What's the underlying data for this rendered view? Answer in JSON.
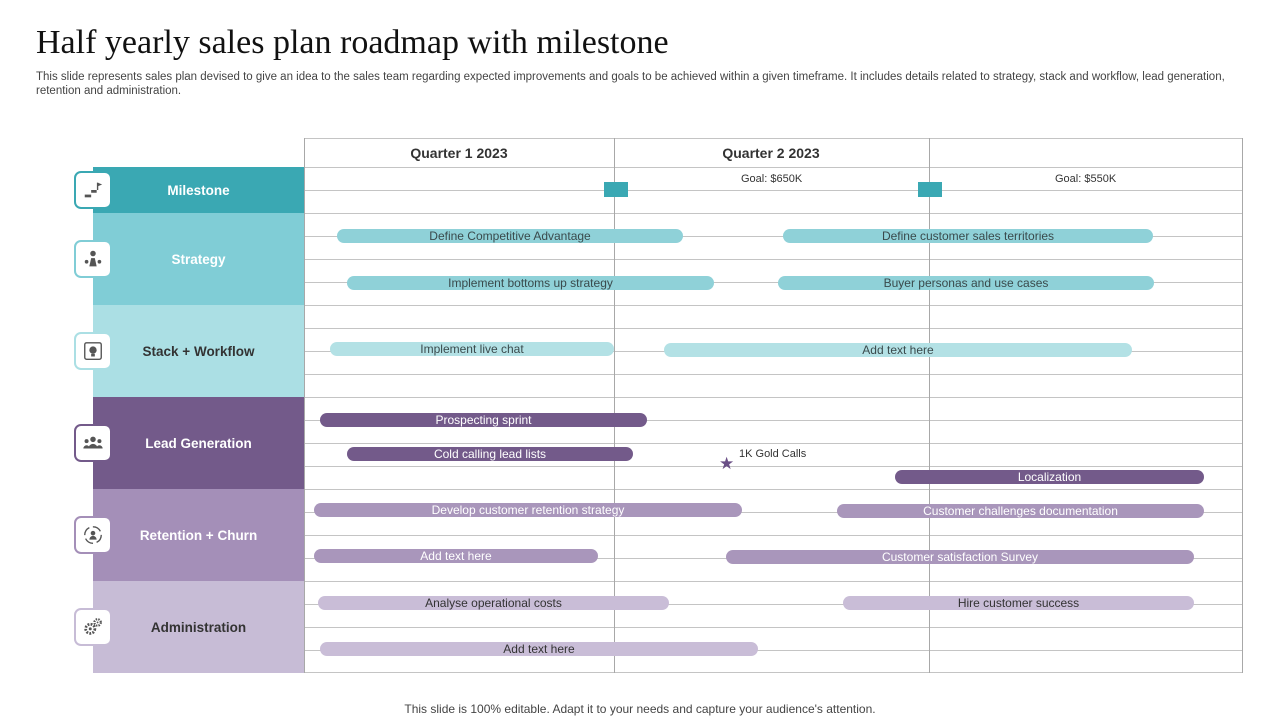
{
  "title": "Half yearly sales plan roadmap with milestone",
  "subtitle": "This slide represents sales plan devised to give an idea to the sales team regarding expected improvements and goals to be achieved within a given timeframe. It includes details related to strategy, stack and workflow, lead generation, retention and administration.",
  "footer": "This slide is 100% editable. Adapt it to your needs and capture your audience's attention.",
  "quarters": [
    "Quarter 1 2023",
    "Quarter 2 2023"
  ],
  "categories": [
    {
      "label": "Milestone",
      "icon": "flag-steps-icon",
      "color": "#3aa8b3",
      "text_color": "#ffffff"
    },
    {
      "label": "Strategy",
      "icon": "chess-strategy-icon",
      "color": "#80cdd6",
      "text_color": "#ffffff"
    },
    {
      "label": "Stack + Workflow",
      "icon": "lightbulb-icon",
      "color": "#abdfe4",
      "text_color": "#333333"
    },
    {
      "label": "Lead Generation",
      "icon": "team-icon",
      "color": "#735a8a",
      "text_color": "#ffffff"
    },
    {
      "label": "Retention + Churn",
      "icon": "retention-cycle-icon",
      "color": "#a48fb8",
      "text_color": "#ffffff"
    },
    {
      "label": "Administration",
      "icon": "gears-icon",
      "color": "#c7bcd6",
      "text_color": "#333333"
    }
  ],
  "milestones": {
    "goals": [
      "Goal: $650K",
      "Goal: $550K"
    ],
    "star_label": "1K Gold Calls"
  },
  "tasks": {
    "strategy": [
      "Define Competitive Advantage",
      "Define customer sales territories",
      "Implement bottoms up strategy",
      "Buyer personas and use cases"
    ],
    "stack": [
      "Implement live chat",
      "Add text here"
    ],
    "lead": [
      "Prospecting sprint",
      "Cold calling lead lists",
      "Localization"
    ],
    "retention": [
      "Develop customer retention strategy",
      "Customer challenges documentation",
      "Add text here",
      "Customer satisfaction Survey"
    ],
    "admin": [
      "Analyse operational costs",
      "Hire customer success",
      "Add text here"
    ]
  }
}
